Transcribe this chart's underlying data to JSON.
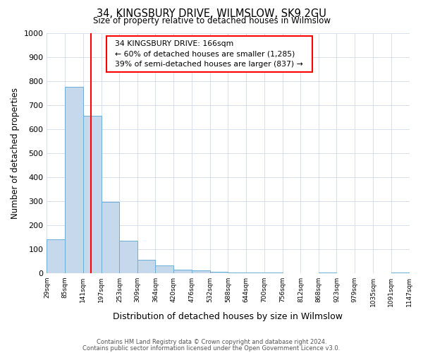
{
  "title": "34, KINGSBURY DRIVE, WILMSLOW, SK9 2GU",
  "subtitle": "Size of property relative to detached houses in Wilmslow",
  "xlabel": "Distribution of detached houses by size in Wilmslow",
  "ylabel": "Number of detached properties",
  "bar_edges": [
    29,
    85,
    141,
    197,
    253,
    309,
    364,
    420,
    476,
    532,
    588,
    644,
    700,
    756,
    812,
    868,
    923,
    979,
    1035,
    1091,
    1147
  ],
  "bar_heights": [
    140,
    775,
    655,
    295,
    135,
    55,
    30,
    15,
    10,
    5,
    2,
    2,
    1,
    0,
    0,
    1,
    0,
    0,
    0,
    1
  ],
  "bar_color": "#c5d8ec",
  "bar_edgecolor": "#6aaed6",
  "red_line_x": 166,
  "ylim": [
    0,
    1000
  ],
  "yticks": [
    0,
    100,
    200,
    300,
    400,
    500,
    600,
    700,
    800,
    900,
    1000
  ],
  "annotation_title": "34 KINGSBURY DRIVE: 166sqm",
  "annotation_line1": "← 60% of detached houses are smaller (1,285)",
  "annotation_line2": "39% of semi-detached houses are larger (837) →",
  "footer1": "Contains HM Land Registry data © Crown copyright and database right 2024.",
  "footer2": "Contains public sector information licensed under the Open Government Licence v3.0.",
  "background_color": "#ffffff",
  "grid_color": "#d0dae8"
}
